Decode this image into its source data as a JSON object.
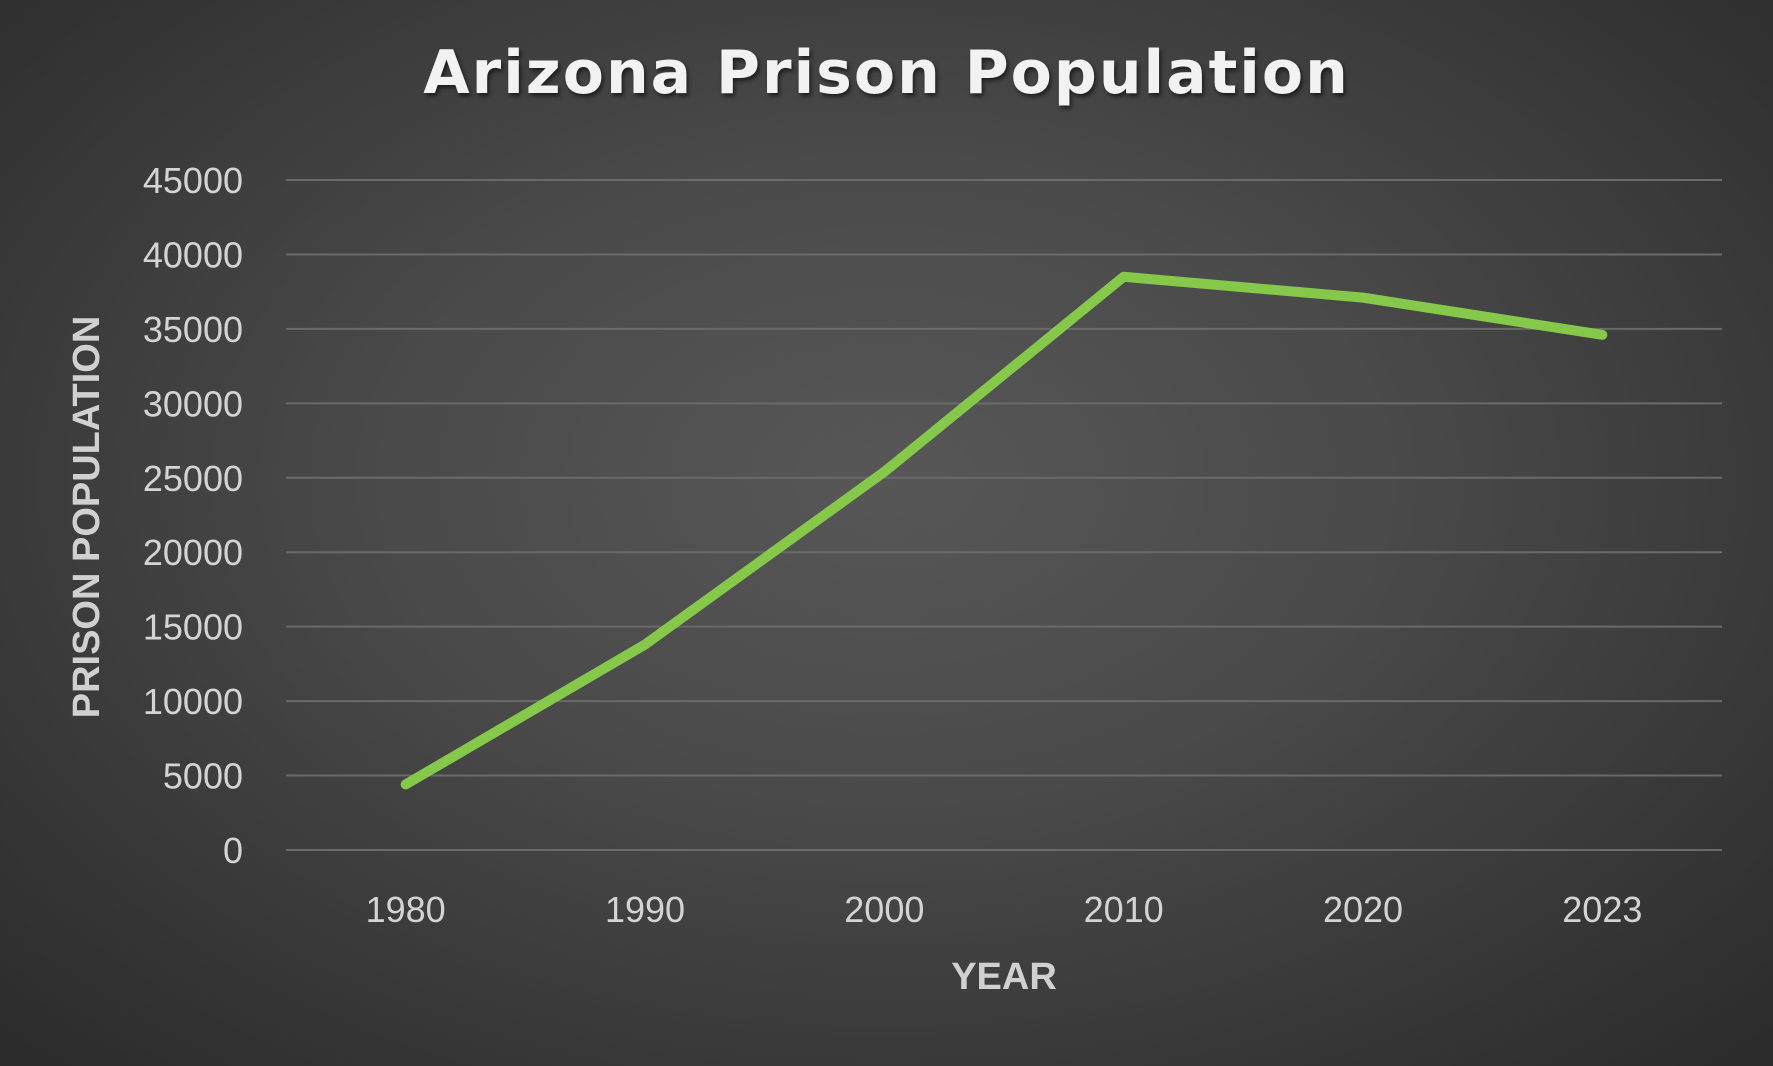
{
  "chart_data": {
    "type": "line",
    "title": "Arizona Prison Population",
    "xlabel": "YEAR",
    "ylabel": "PRISON POPULATION",
    "categories": [
      "1980",
      "1990",
      "2000",
      "2010",
      "2020",
      "2023"
    ],
    "series": [
      {
        "values": [
          4400,
          13800,
          25400,
          38500,
          37100,
          34600
        ],
        "color": "#86c94a"
      }
    ],
    "ylim": [
      0,
      45000
    ],
    "yticks": [
      0,
      5000,
      10000,
      15000,
      20000,
      25000,
      30000,
      35000,
      40000,
      45000
    ],
    "grid": true,
    "legend": "none"
  }
}
